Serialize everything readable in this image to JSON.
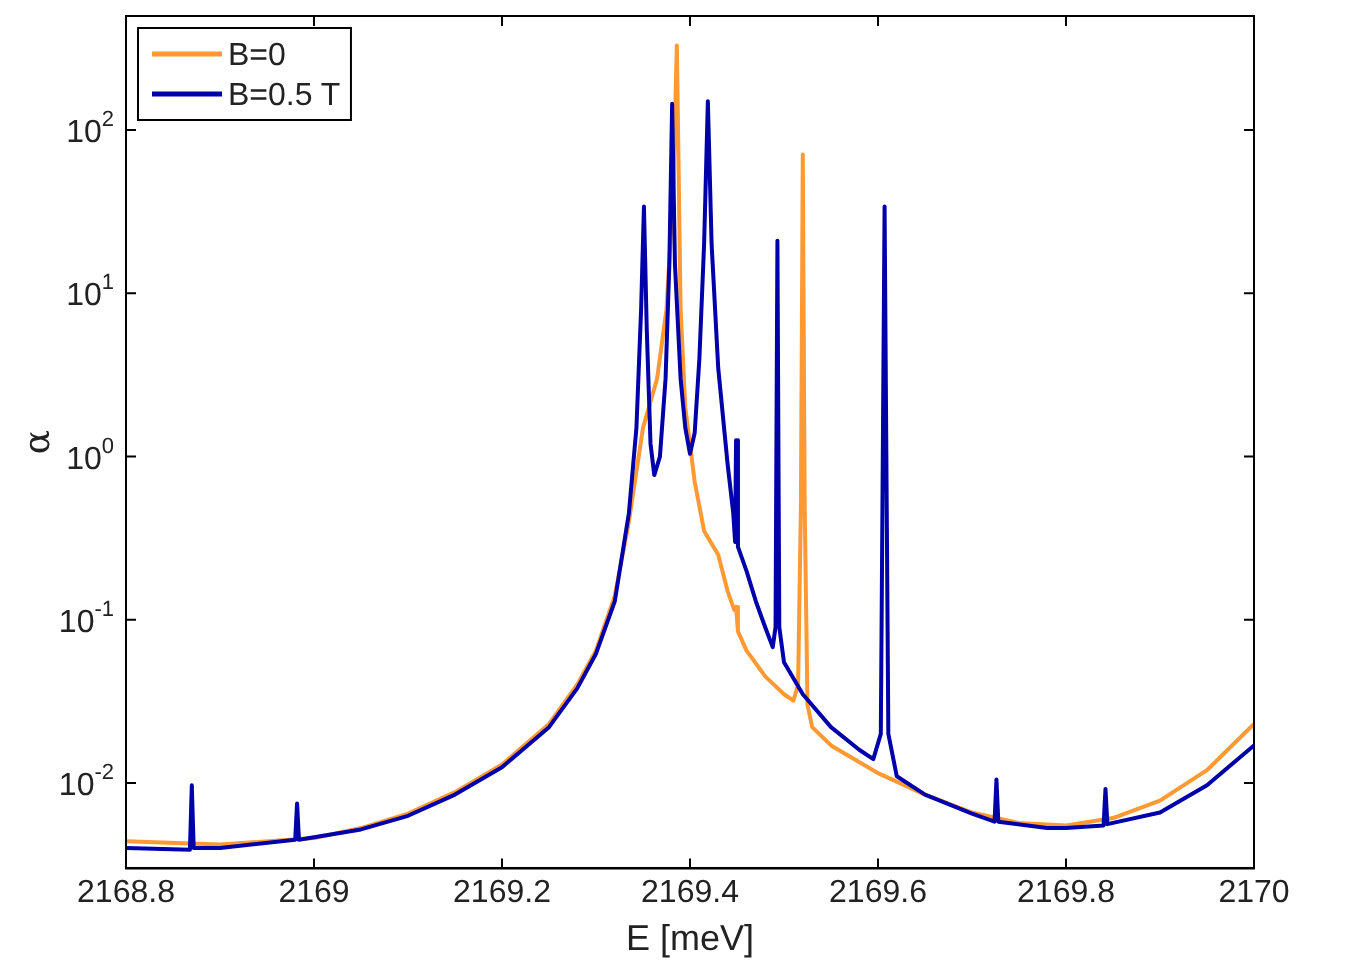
{
  "chart_data": {
    "type": "line",
    "xlabel": "E [meV]",
    "ylabel": "α",
    "log": "y",
    "grid": false,
    "legend": "top left",
    "marker": "none",
    "line_style": "solid",
    "xlim": [
      2168.8,
      2170
    ],
    "xticks": [
      2168.8,
      2169,
      2169.2,
      2169.4,
      2169.6,
      2169.8,
      2170
    ],
    "ylim": [
      0.003,
      500
    ],
    "yticks": [
      {
        "value": 0.01,
        "label": "10$^{-2}$"
      },
      {
        "value": 0.1,
        "label": "10$^{-1}$"
      },
      {
        "value": 1,
        "label": "10$^{0}$"
      },
      {
        "value": 10,
        "label": "10$^{1}$"
      },
      {
        "value": 100,
        "label": "10$^{2}$"
      }
    ],
    "series": [
      {
        "name": "B=0",
        "color": "#ff9933",
        "x": [
          2168.8,
          2168.9,
          2169.0,
          2169.05,
          2169.1,
          2169.15,
          2169.2,
          2169.25,
          2169.28,
          2169.3,
          2169.32,
          2169.335,
          2169.35,
          2169.365,
          2169.375,
          2169.382,
          2169.386,
          2169.39,
          2169.395,
          2169.405,
          2169.415,
          2169.43,
          2169.44,
          2169.447,
          2169.449,
          2169.451,
          2169.46,
          2169.48,
          2169.5,
          2169.51,
          2169.515,
          2169.518,
          2169.52,
          2169.522,
          2169.525,
          2169.53,
          2169.55,
          2169.6,
          2169.65,
          2169.7,
          2169.75,
          2169.8,
          2169.85,
          2169.9,
          2169.95,
          2170
        ],
        "values": [
          0.0044,
          0.0042,
          0.0046,
          0.0053,
          0.0065,
          0.0088,
          0.013,
          0.023,
          0.04,
          0.065,
          0.14,
          0.4,
          1.5,
          3,
          8,
          40,
          330,
          8,
          2,
          0.7,
          0.35,
          0.25,
          0.15,
          0.115,
          0.12,
          0.085,
          0.065,
          0.045,
          0.035,
          0.032,
          0.04,
          0.5,
          71,
          0.5,
          0.03,
          0.022,
          0.017,
          0.0115,
          0.0085,
          0.0066,
          0.0057,
          0.0055,
          0.0061,
          0.0078,
          0.012,
          0.023
        ]
      },
      {
        "name": "B=0.5 T",
        "color": "#0000aa",
        "x": [
          2168.8,
          2168.868,
          2168.87,
          2168.872,
          2168.9,
          2168.98,
          2168.982,
          2168.984,
          2169.05,
          2169.1,
          2169.15,
          2169.2,
          2169.25,
          2169.28,
          2169.3,
          2169.32,
          2169.335,
          2169.343,
          2169.348,
          2169.351,
          2169.354,
          2169.358,
          2169.362,
          2169.368,
          2169.374,
          2169.378,
          2169.381,
          2169.384,
          2169.39,
          2169.395,
          2169.4,
          2169.405,
          2169.41,
          2169.415,
          2169.419,
          2169.423,
          2169.43,
          2169.44,
          2169.446,
          2169.448,
          2169.449,
          2169.451,
          2169.46,
          2169.47,
          2169.48,
          2169.488,
          2169.491,
          2169.493,
          2169.495,
          2169.5,
          2169.52,
          2169.55,
          2169.58,
          2169.595,
          2169.603,
          2169.607,
          2169.611,
          2169.62,
          2169.65,
          2169.7,
          2169.724,
          2169.726,
          2169.728,
          2169.78,
          2169.8,
          2169.84,
          2169.842,
          2169.844,
          2169.9,
          2169.95,
          2170
        ],
        "values": [
          0.004,
          0.0039,
          0.0097,
          0.004,
          0.004,
          0.0045,
          0.0075,
          0.0045,
          0.0052,
          0.0063,
          0.0085,
          0.0125,
          0.022,
          0.038,
          0.062,
          0.13,
          0.45,
          1.5,
          8,
          34,
          6,
          1.2,
          0.77,
          1,
          3,
          15,
          145,
          15,
          3,
          1.5,
          1.04,
          1.4,
          4,
          20,
          150,
          20,
          3.5,
          0.9,
          0.45,
          0.3,
          1.26,
          0.28,
          0.2,
          0.13,
          0.09,
          0.068,
          0.09,
          21,
          0.09,
          0.055,
          0.035,
          0.022,
          0.016,
          0.014,
          0.02,
          34,
          0.02,
          0.011,
          0.0085,
          0.0065,
          0.0058,
          0.0105,
          0.0058,
          0.0053,
          0.0053,
          0.0055,
          0.0092,
          0.0056,
          0.0066,
          0.0097,
          0.017
        ]
      }
    ]
  }
}
